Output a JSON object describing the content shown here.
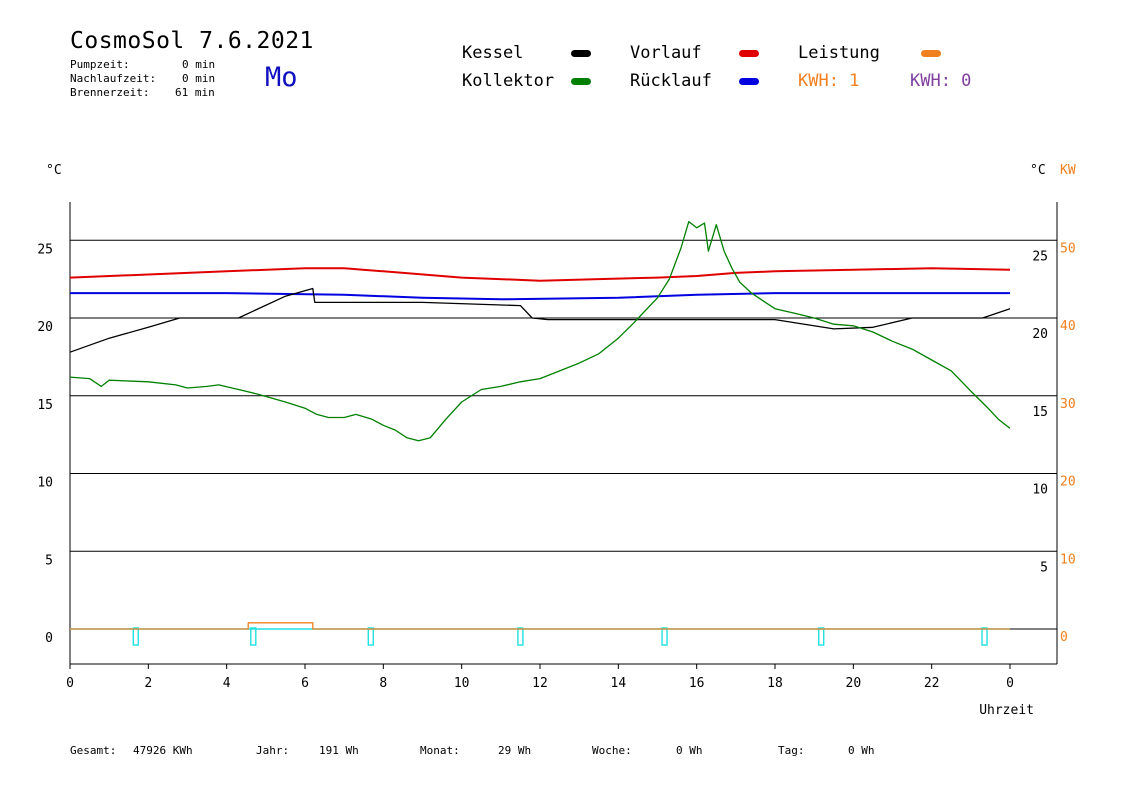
{
  "header": {
    "title": "CosmoSol 7.6.2021",
    "day": "Mo",
    "info": [
      {
        "label": "Pumpzeit:",
        "value": "0 min"
      },
      {
        "label": "Nachlaufzeit:",
        "value": "0 min"
      },
      {
        "label": "Brennerzeit:",
        "value": "61 min"
      }
    ]
  },
  "legend": {
    "items": [
      {
        "label": "Kessel",
        "color": "#000000"
      },
      {
        "label": "Kollektor",
        "color": "#008000"
      },
      {
        "label": "Vorlauf",
        "color": "#e00000"
      },
      {
        "label": "Rücklauf",
        "color": "#0000e0"
      },
      {
        "label": "Leistung",
        "color": "#f08020"
      }
    ],
    "kwh1": "KWH: 1",
    "kwh1_color": "#f08020",
    "kwh2": "KWH: 0",
    "kwh2_color": "#8040a0"
  },
  "footer": {
    "items": [
      {
        "label": "Gesamt:",
        "value": "47926 KWh"
      },
      {
        "label": "Jahr:",
        "value": "191 Wh"
      },
      {
        "label": "Monat:",
        "value": "29 Wh"
      },
      {
        "label": "Woche:",
        "value": "0 Wh"
      },
      {
        "label": "Tag:",
        "value": "0 Wh"
      }
    ]
  },
  "chart_data": {
    "type": "line",
    "xlabel": "Uhrzeit",
    "left_unit": "°C",
    "right_unit": "°C",
    "power_unit": "KW",
    "xlim": [
      0,
      24
    ],
    "ylim": [
      -1.5,
      27.5
    ],
    "x_ticks": [
      "0",
      "2",
      "4",
      "6",
      "8",
      "10",
      "12",
      "14",
      "16",
      "18",
      "20",
      "22",
      "0"
    ],
    "y_ticks_left": [
      "25",
      "20",
      "15",
      "10",
      "5",
      "0"
    ],
    "y_ticks_right": [
      "25",
      "20",
      "15",
      "10",
      "5"
    ],
    "y_ticks_power": [
      "50",
      "40",
      "30",
      "20",
      "10",
      "0"
    ],
    "gridlines_y": [
      25,
      20,
      15,
      10,
      5
    ],
    "series": [
      {
        "name": "Vorlauf",
        "color": "#e00000",
        "width": 2,
        "points": [
          [
            0,
            22.6
          ],
          [
            2,
            22.8
          ],
          [
            4,
            23.0
          ],
          [
            6,
            23.2
          ],
          [
            7,
            23.2
          ],
          [
            8,
            23.0
          ],
          [
            10,
            22.6
          ],
          [
            12,
            22.4
          ],
          [
            13.5,
            22.5
          ],
          [
            15,
            22.6
          ],
          [
            16,
            22.7
          ],
          [
            17,
            22.9
          ],
          [
            18,
            23.0
          ],
          [
            20,
            23.1
          ],
          [
            22,
            23.2
          ],
          [
            24,
            23.1
          ]
        ]
      },
      {
        "name": "Rücklauf",
        "color": "#0000e0",
        "width": 2,
        "points": [
          [
            0,
            21.6
          ],
          [
            4,
            21.6
          ],
          [
            7,
            21.5
          ],
          [
            9,
            21.3
          ],
          [
            11,
            21.2
          ],
          [
            14,
            21.3
          ],
          [
            16,
            21.5
          ],
          [
            18,
            21.6
          ],
          [
            20,
            21.6
          ],
          [
            22,
            21.6
          ],
          [
            24,
            21.6
          ]
        ]
      },
      {
        "name": "Kessel",
        "color": "#000000",
        "width": 1.3,
        "points": [
          [
            0,
            17.8
          ],
          [
            1,
            18.7
          ],
          [
            2,
            19.4
          ],
          [
            2.8,
            20.0
          ],
          [
            4.3,
            20.0
          ],
          [
            5.5,
            21.4
          ],
          [
            6.2,
            21.9
          ],
          [
            6.25,
            21.0
          ],
          [
            7,
            21.0
          ],
          [
            9,
            21.0
          ],
          [
            11.5,
            20.8
          ],
          [
            11.8,
            20.0
          ],
          [
            12.2,
            19.9
          ],
          [
            16,
            19.9
          ],
          [
            18,
            19.9
          ],
          [
            19.5,
            19.3
          ],
          [
            20.5,
            19.4
          ],
          [
            21.5,
            20.0
          ],
          [
            23.3,
            20.0
          ],
          [
            24,
            20.6
          ]
        ]
      },
      {
        "name": "Kollektor",
        "color": "#008000",
        "width": 1.3,
        "points": [
          [
            0,
            16.2
          ],
          [
            0.5,
            16.1
          ],
          [
            0.8,
            15.6
          ],
          [
            1,
            16.0
          ],
          [
            2,
            15.9
          ],
          [
            2.7,
            15.7
          ],
          [
            3,
            15.5
          ],
          [
            3.5,
            15.6
          ],
          [
            3.8,
            15.7
          ],
          [
            4.3,
            15.4
          ],
          [
            4.8,
            15.1
          ],
          [
            5.5,
            14.6
          ],
          [
            6,
            14.2
          ],
          [
            6.3,
            13.8
          ],
          [
            6.6,
            13.6
          ],
          [
            7,
            13.6
          ],
          [
            7.3,
            13.8
          ],
          [
            7.7,
            13.5
          ],
          [
            8,
            13.1
          ],
          [
            8.3,
            12.8
          ],
          [
            8.6,
            12.3
          ],
          [
            8.9,
            12.1
          ],
          [
            9.2,
            12.3
          ],
          [
            9.6,
            13.5
          ],
          [
            10,
            14.6
          ],
          [
            10.5,
            15.4
          ],
          [
            11,
            15.6
          ],
          [
            11.5,
            15.9
          ],
          [
            12,
            16.1
          ],
          [
            12.5,
            16.6
          ],
          [
            13,
            17.1
          ],
          [
            13.5,
            17.7
          ],
          [
            14,
            18.7
          ],
          [
            14.4,
            19.7
          ],
          [
            14.7,
            20.5
          ],
          [
            15,
            21.3
          ],
          [
            15.3,
            22.5
          ],
          [
            15.6,
            24.5
          ],
          [
            15.8,
            26.2
          ],
          [
            16,
            25.8
          ],
          [
            16.2,
            26.1
          ],
          [
            16.3,
            24.3
          ],
          [
            16.5,
            26.0
          ],
          [
            16.7,
            24.3
          ],
          [
            16.9,
            23.2
          ],
          [
            17.1,
            22.3
          ],
          [
            17.4,
            21.6
          ],
          [
            17.7,
            21.1
          ],
          [
            18,
            20.6
          ],
          [
            18.5,
            20.3
          ],
          [
            19,
            20.0
          ],
          [
            19.5,
            19.6
          ],
          [
            20,
            19.5
          ],
          [
            20.5,
            19.1
          ],
          [
            21,
            18.5
          ],
          [
            21.5,
            18.0
          ],
          [
            22,
            17.3
          ],
          [
            22.5,
            16.6
          ],
          [
            23,
            15.3
          ],
          [
            23.4,
            14.3
          ],
          [
            23.7,
            13.5
          ],
          [
            24,
            12.9
          ]
        ]
      },
      {
        "name": "Leistung",
        "color": "#f08020",
        "width": 1.3,
        "points": [
          [
            0,
            0
          ],
          [
            4.55,
            0
          ],
          [
            4.55,
            0.4
          ],
          [
            6.2,
            0.4
          ],
          [
            6.2,
            0
          ],
          [
            24,
            0
          ]
        ]
      }
    ],
    "baseline": {
      "color": "#20e0e0",
      "y": 0,
      "markers_x": [
        1.68,
        4.68,
        7.68,
        11.5,
        15.18,
        19.18,
        23.35
      ]
    }
  }
}
